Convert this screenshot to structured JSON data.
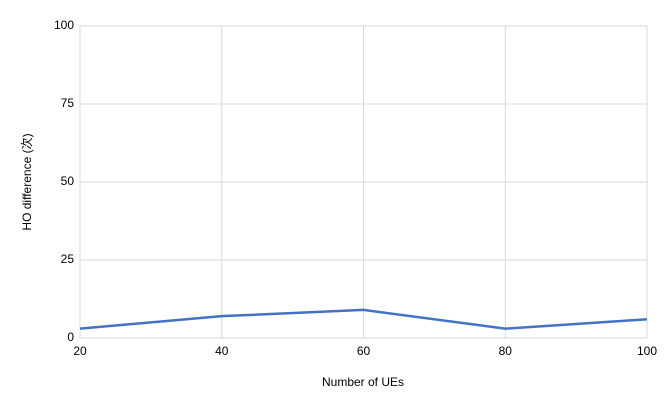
{
  "chart_data": {
    "type": "line",
    "x_label": "Number of UEs",
    "y_label": "HO difference (次)",
    "x": [
      20,
      40,
      60,
      80,
      100
    ],
    "series": [
      {
        "name": "HO difference",
        "color": "#4472c4",
        "values": [
          3,
          7,
          9,
          3,
          6
        ]
      }
    ],
    "xlim": [
      20,
      100
    ],
    "xticks": [
      20,
      40,
      60,
      80,
      100
    ],
    "ylim": [
      0,
      100
    ],
    "yticks": [
      0,
      25,
      50,
      75,
      100
    ],
    "grid": true
  }
}
